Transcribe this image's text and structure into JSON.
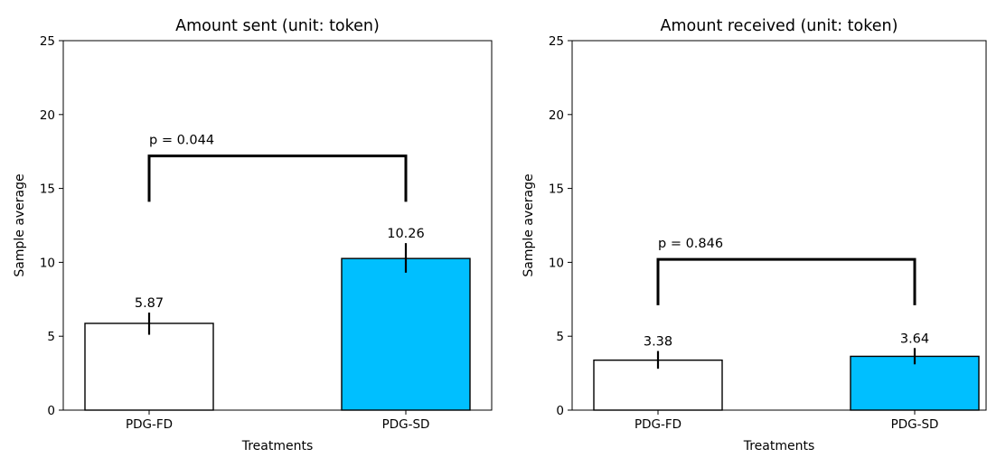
{
  "chart_data": [
    {
      "type": "bar",
      "title": "Amount sent (unit: token)",
      "xlabel": "Treatments",
      "ylabel": "Sample average",
      "ylim": [
        0,
        25
      ],
      "yticks": [
        0,
        5,
        10,
        15,
        20,
        25
      ],
      "categories": [
        "PDG-FD",
        "PDG-SD"
      ],
      "values": [
        5.87,
        10.26
      ],
      "value_labels": [
        "5.87",
        "10.26"
      ],
      "error_bars": [
        [
          5.1,
          6.6
        ],
        [
          9.3,
          11.3
        ]
      ],
      "bar_colors": [
        "#ffffff",
        "#00bfff"
      ],
      "grid": false,
      "annotation": {
        "text": "p = 0.044",
        "bracket_top": 17.2,
        "bracket_bottom": 14.1
      }
    },
    {
      "type": "bar",
      "title": "Amount received (unit: token)",
      "xlabel": "Treatments",
      "ylabel": "Sample average",
      "ylim": [
        0,
        25
      ],
      "yticks": [
        0,
        5,
        10,
        15,
        20,
        25
      ],
      "categories": [
        "PDG-FD",
        "PDG-SD"
      ],
      "values": [
        3.38,
        3.64
      ],
      "value_labels": [
        "3.38",
        "3.64"
      ],
      "error_bars": [
        [
          2.8,
          4.0
        ],
        [
          3.1,
          4.2
        ]
      ],
      "bar_colors": [
        "#ffffff",
        "#00bfff"
      ],
      "grid": false,
      "annotation": {
        "text": "p = 0.846",
        "bracket_top": 10.2,
        "bracket_bottom": 7.1
      }
    }
  ]
}
